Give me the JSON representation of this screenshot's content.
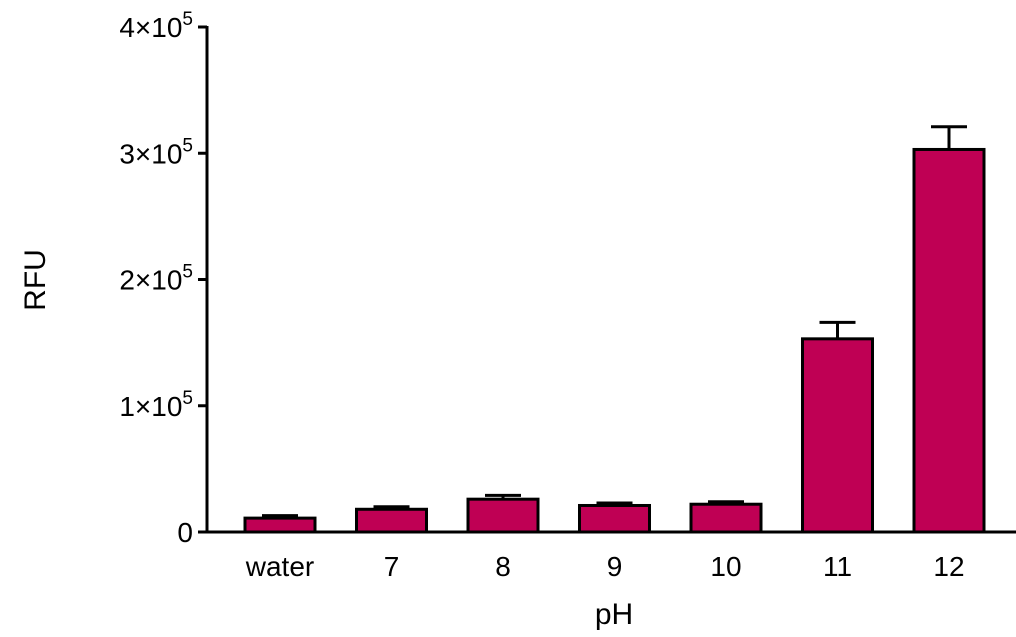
{
  "chart_data": {
    "type": "bar",
    "title": "",
    "xlabel": "pH",
    "ylabel": "RFU",
    "categories": [
      "water",
      "7",
      "8",
      "9",
      "10",
      "11",
      "12"
    ],
    "values": [
      11000,
      18000,
      26000,
      21000,
      22000,
      153000,
      303000
    ],
    "error": [
      2000,
      2000,
      3000,
      2000,
      2000,
      13000,
      18000
    ],
    "ylim": [
      0,
      400000
    ],
    "yticks": [
      0,
      100000,
      200000,
      300000,
      400000
    ],
    "ytick_labels": [
      {
        "mantissa": "0",
        "exp": ""
      },
      {
        "mantissa": "1×10",
        "exp": "5"
      },
      {
        "mantissa": "2×10",
        "exp": "5"
      },
      {
        "mantissa": "3×10",
        "exp": "5"
      },
      {
        "mantissa": "4×10",
        "exp": "5"
      }
    ],
    "bar_color": "#bf0054",
    "grid": false,
    "legend": "none"
  }
}
